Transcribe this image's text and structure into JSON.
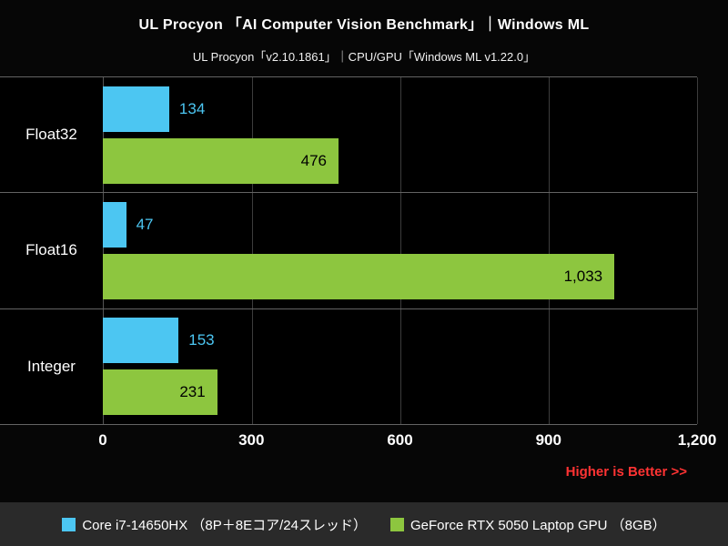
{
  "header": {
    "title": "UL Procyon 「AI Computer Vision Benchmark」｜Windows ML",
    "subtitle": "UL Procyon「v2.10.1861」｜CPU/GPU「Windows ML v1.22.0」"
  },
  "chart_data": {
    "type": "bar",
    "orientation": "horizontal",
    "title": "UL Procyon 「AI Computer Vision Benchmark」｜Windows ML",
    "subtitle": "UL Procyon「v2.10.1861」｜CPU/GPU「Windows ML v1.22.0」",
    "categories": [
      "Float32",
      "Float16",
      "Integer"
    ],
    "series": [
      {
        "name": "Core i7-14650HX （8P＋8Eコア/24スレッド）",
        "color": "#4cc6f2",
        "values": [
          134,
          47,
          153
        ],
        "value_labels": [
          "134",
          "47",
          "153"
        ],
        "labels_inside": false
      },
      {
        "name": "GeForce RTX 5050 Laptop GPU （8GB）",
        "color": "#8dc63f",
        "values": [
          476,
          1033,
          231
        ],
        "value_labels": [
          "476",
          "1,033",
          "231"
        ],
        "labels_inside": true
      }
    ],
    "xlim": [
      0,
      1200
    ],
    "x_ticks": [
      0,
      300,
      600,
      900,
      1200
    ],
    "x_tick_labels": [
      "0",
      "300",
      "600",
      "900",
      "1,200"
    ],
    "grid": true,
    "legend_position": "bottom",
    "plot_background": "#000000"
  },
  "footer": {
    "note": "Higher is Better >>",
    "note_color": "#ff3333"
  }
}
